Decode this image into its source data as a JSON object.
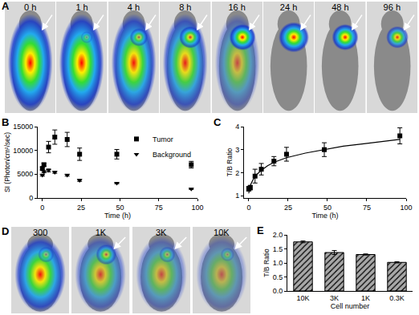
{
  "image_panels": [
    {
      "label": "A",
      "captions": [
        "0 h",
        "1 h",
        "4 h",
        "8 h",
        "16 h",
        "24 h",
        "48 h",
        "96 h"
      ]
    },
    {
      "label": "D",
      "captions": [
        "300",
        "1K",
        "3K",
        "10K"
      ]
    }
  ],
  "chart_data": [
    {
      "type": "scatter",
      "annotations": [
        "B"
      ],
      "x_label": "Time (h)",
      "y_label": "SI (Photon/cm²/sec)",
      "xlim": [
        -3,
        100
      ],
      "xticks": [
        0,
        25,
        50,
        75,
        100
      ],
      "ylim": [
        0,
        15000
      ],
      "yticks": [
        0,
        5000,
        10000,
        15000
      ],
      "legend": "top right",
      "x": [
        0,
        1,
        4,
        8,
        16,
        24,
        48,
        96
      ],
      "series": [
        {
          "name": "Tumor",
          "color": "#000000",
          "marker": "square",
          "values": [
            6200,
            7000,
            10700,
            12800,
            12300,
            9200,
            9200,
            7000
          ],
          "errors": [
            300,
            300,
            1200,
            1500,
            1500,
            1300,
            1000,
            700
          ]
        },
        {
          "name": "Background",
          "color": "#000000",
          "marker": "triangle-down",
          "values": [
            4800,
            5500,
            5800,
            5400,
            4800,
            3700,
            3100,
            1900
          ],
          "errors": [
            200,
            200,
            300,
            200,
            200,
            200,
            100,
            100
          ]
        }
      ]
    },
    {
      "type": "scatter",
      "annotations": [
        "C"
      ],
      "x_label": "Time (h)",
      "y_label": "T/B Ratio",
      "xlim": [
        -3,
        100
      ],
      "xticks": [
        0,
        25,
        50,
        75,
        100
      ],
      "ylim": [
        0.9,
        4
      ],
      "yticks": [
        1,
        2,
        3,
        4
      ],
      "x": [
        0,
        1,
        4,
        8,
        16,
        24,
        48,
        96
      ],
      "series": [
        {
          "type": "scatter",
          "color": "#000000",
          "marker": "square",
          "values": [
            1.3,
            1.35,
            1.85,
            2.15,
            2.5,
            2.8,
            3.0,
            3.6
          ],
          "errors": [
            0.1,
            0.1,
            0.3,
            0.25,
            0.2,
            0.3,
            0.3,
            0.35
          ]
        },
        {
          "type": "line",
          "color": "#000000",
          "x": [
            0,
            1,
            2,
            4,
            8,
            12,
            16,
            24,
            36,
            48,
            60,
            72,
            84,
            96
          ],
          "values": [
            1.1,
            1.45,
            1.6,
            1.85,
            2.1,
            2.3,
            2.45,
            2.65,
            2.85,
            3.0,
            3.15,
            3.25,
            3.35,
            3.45
          ]
        }
      ]
    },
    {
      "type": "bar",
      "annotations": [
        "E"
      ],
      "x_label": "Cell number",
      "y_label": "T/B Ratio",
      "categories": [
        "10K",
        "3K",
        "1K",
        "0.3K"
      ],
      "values": [
        1.75,
        1.37,
        1.3,
        1.02
      ],
      "errors": [
        0.03,
        0.07,
        0.02,
        0.02
      ],
      "color": "#a8a8a8",
      "marker": "hatched",
      "ylim": [
        0,
        2
      ],
      "yticks": [
        {
          "value": 0,
          "label": "0.0"
        },
        {
          "value": 0.5,
          "label": "0.5"
        },
        {
          "value": 1,
          "label": "1.0"
        },
        {
          "value": 1.5,
          "label": "1.5"
        },
        {
          "value": 2,
          "label": "2.0"
        }
      ]
    }
  ]
}
